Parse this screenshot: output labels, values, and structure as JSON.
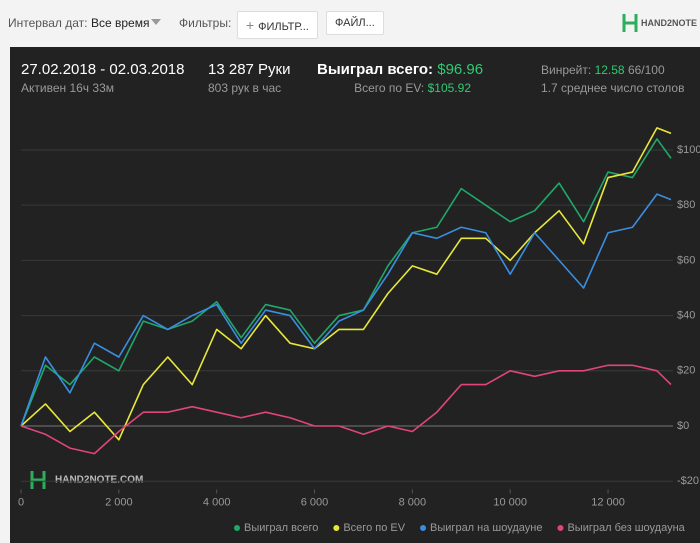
{
  "toolbar": {
    "date_label": "Интервал дат:",
    "date_value": "Все время",
    "filters_label": "Фильтры:",
    "filter_button": "ФИЛЬТР...",
    "file_button": "ФАЙЛ...",
    "logo": "HAND2NOTE"
  },
  "summary": {
    "date_range": "27.02.2018 - 02.03.2018",
    "active": "Активен 16ч 33м",
    "hands": "13 287 Руки",
    "hands_per_hour": "803 рук в час",
    "won_label": "Выиграл всего:",
    "won_value": "$96.96",
    "ev_label": "Всего по EV:",
    "ev_value": "$105.92",
    "winrate_label": "Винрейт:",
    "winrate_value": "12.58",
    "winrate_unit": "66/100",
    "tables": "1.7 среднее число столов"
  },
  "chart_data": {
    "type": "line",
    "watermark": "HAND2NOTE.COM",
    "x": [
      0,
      500,
      1000,
      1500,
      2000,
      2500,
      3000,
      3500,
      4000,
      4500,
      5000,
      5500,
      6000,
      6500,
      7000,
      7500,
      8000,
      8500,
      9000,
      9500,
      10000,
      10500,
      11000,
      11500,
      12000,
      12500,
      13000,
      13287
    ],
    "series": [
      {
        "name": "Выиграл всего",
        "color": "#1fa86a",
        "values": [
          0,
          22,
          15,
          25,
          20,
          38,
          35,
          38,
          45,
          32,
          44,
          42,
          30,
          40,
          42,
          58,
          70,
          72,
          86,
          80,
          74,
          78,
          88,
          74,
          92,
          90,
          104,
          97
        ]
      },
      {
        "name": "Всего по EV",
        "color": "#e8e83a",
        "values": [
          0,
          8,
          -2,
          5,
          -5,
          15,
          25,
          15,
          35,
          28,
          40,
          30,
          28,
          35,
          35,
          48,
          58,
          55,
          68,
          68,
          60,
          70,
          78,
          66,
          90,
          92,
          108,
          106
        ]
      },
      {
        "name": "Выиграл на шоудауне",
        "color": "#3a8ee0",
        "values": [
          0,
          25,
          12,
          30,
          25,
          40,
          35,
          40,
          44,
          30,
          42,
          40,
          28,
          38,
          42,
          55,
          70,
          68,
          72,
          70,
          55,
          70,
          60,
          50,
          70,
          72,
          84,
          82
        ]
      },
      {
        "name": "Выиграл без шоудауна",
        "color": "#e0457a",
        "values": [
          0,
          -3,
          -8,
          -10,
          -2,
          5,
          5,
          7,
          5,
          3,
          5,
          3,
          0,
          0,
          -3,
          0,
          -2,
          5,
          15,
          15,
          20,
          18,
          20,
          20,
          22,
          22,
          20,
          15
        ]
      }
    ],
    "xlim": [
      0,
      13287
    ],
    "ylim": [
      -23,
      116
    ],
    "xticks": [
      0,
      {
        "value": 2000,
        "label": "2 000"
      },
      {
        "value": 4000,
        "label": "4 000"
      },
      {
        "value": 6000,
        "label": "6 000"
      },
      {
        "value": 8000,
        "label": "8 000"
      },
      {
        "value": 10000,
        "label": "10 000"
      },
      {
        "value": 12000,
        "label": "12 000"
      }
    ],
    "yticks": [
      {
        "value": -20,
        "label": "-$20"
      },
      {
        "value": 0,
        "label": "$0"
      },
      {
        "value": 20,
        "label": "$20"
      },
      {
        "value": 40,
        "label": "$40"
      },
      {
        "value": 60,
        "label": "$60"
      },
      {
        "value": 80,
        "label": "$80"
      },
      {
        "value": 100,
        "label": "$100"
      }
    ],
    "grid": true,
    "legend": "bottom"
  }
}
